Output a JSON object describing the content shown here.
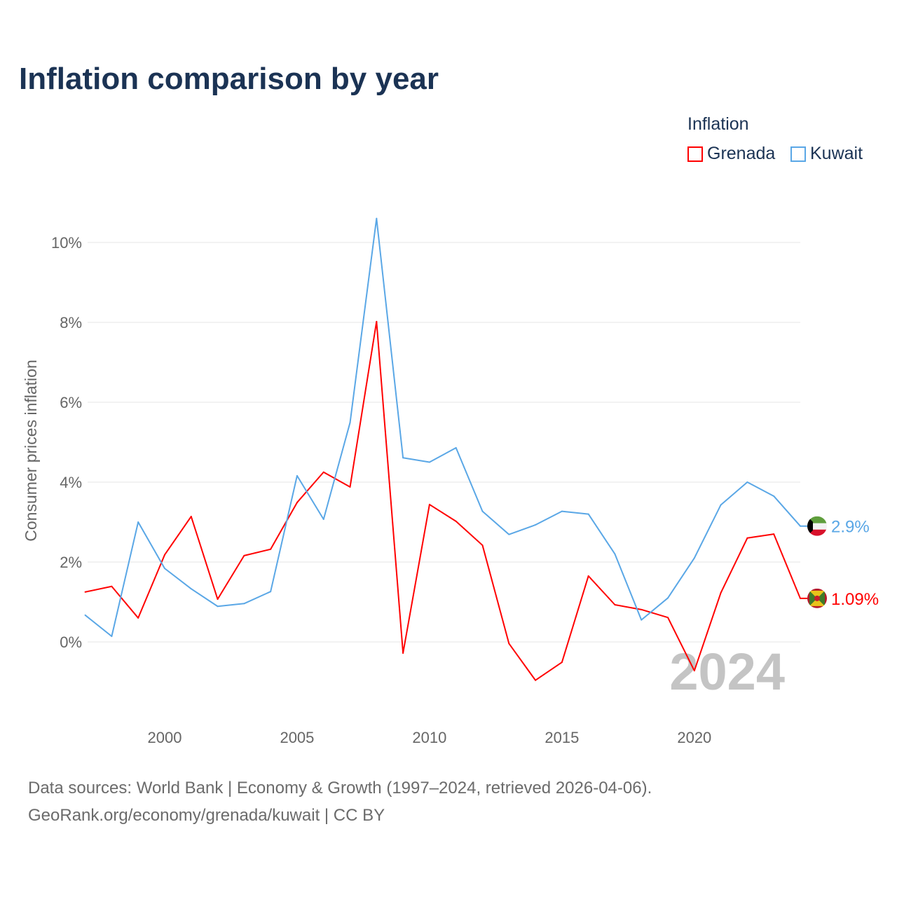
{
  "title": "Inflation comparison by year",
  "legend": {
    "title": "Inflation",
    "items": [
      {
        "name": "Grenada",
        "color": "#ff0000"
      },
      {
        "name": "Kuwait",
        "color": "#5aa7e6"
      }
    ]
  },
  "footer": {
    "line1": "Data sources: World Bank | Economy & Growth (1997–2024, retrieved 2026-04-06).",
    "line2": "GeoRank.org/economy/grenada/kuwait | CC BY"
  },
  "chart_data": {
    "type": "line",
    "title": "Inflation comparison by year",
    "xlabel": "",
    "ylabel": "Consumer prices inflation",
    "xlim": [
      1997,
      2024
    ],
    "ylim": [
      -1.6,
      11
    ],
    "yticks": [
      0,
      2,
      4,
      6,
      8,
      10
    ],
    "ytick_labels": [
      "0%",
      "2%",
      "4%",
      "6%",
      "8%",
      "10%"
    ],
    "xticks": [
      2000,
      2005,
      2010,
      2015,
      2020
    ],
    "xtick_labels": [
      "2000",
      "2005",
      "2010",
      "2015",
      "2020"
    ],
    "grid": true,
    "legend_position": "top-right",
    "year_watermark": "2024",
    "x": [
      1997,
      1998,
      1999,
      2000,
      2001,
      2002,
      2003,
      2004,
      2005,
      2006,
      2007,
      2008,
      2009,
      2010,
      2011,
      2012,
      2013,
      2014,
      2015,
      2016,
      2017,
      2018,
      2019,
      2020,
      2021,
      2022,
      2023,
      2024
    ],
    "series": [
      {
        "name": "Grenada",
        "color": "#ff0000",
        "end_label": "1.09%",
        "values": [
          1.25,
          1.39,
          0.6,
          2.18,
          3.14,
          1.07,
          2.16,
          2.32,
          3.49,
          4.25,
          3.88,
          8.02,
          -0.28,
          3.44,
          3.02,
          2.42,
          -0.04,
          -0.96,
          -0.51,
          1.65,
          0.93,
          0.81,
          0.61,
          -0.72,
          1.23,
          2.6,
          2.7,
          1.09
        ]
      },
      {
        "name": "Kuwait",
        "color": "#5aa7e6",
        "end_label": "2.9%",
        "values": [
          0.67,
          0.14,
          3.0,
          1.84,
          1.33,
          0.89,
          0.96,
          1.26,
          4.16,
          3.07,
          5.49,
          10.6,
          4.61,
          4.5,
          4.86,
          3.27,
          2.69,
          2.93,
          3.27,
          3.2,
          2.2,
          0.55,
          1.1,
          2.1,
          3.43,
          4.0,
          3.65,
          2.9
        ]
      }
    ]
  }
}
